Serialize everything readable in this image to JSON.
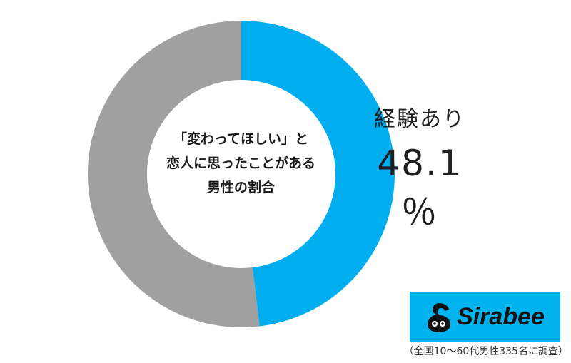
{
  "chart_data": {
    "type": "pie",
    "style": "donut",
    "center_label": [
      "「変わってほしい」と",
      "恋人に思ったことがある",
      "男性の割合"
    ],
    "slices": [
      {
        "label": "経験あり",
        "value": 48.1,
        "value_text": "48.1 ％",
        "color": "#00aeef"
      },
      {
        "label": "",
        "value": 51.9,
        "color": "#a0a0a0"
      }
    ]
  },
  "brand": {
    "logo_text": "Sirabee",
    "color": "#00b2ee"
  },
  "note": "（全国10～60代男性335名に調査）"
}
